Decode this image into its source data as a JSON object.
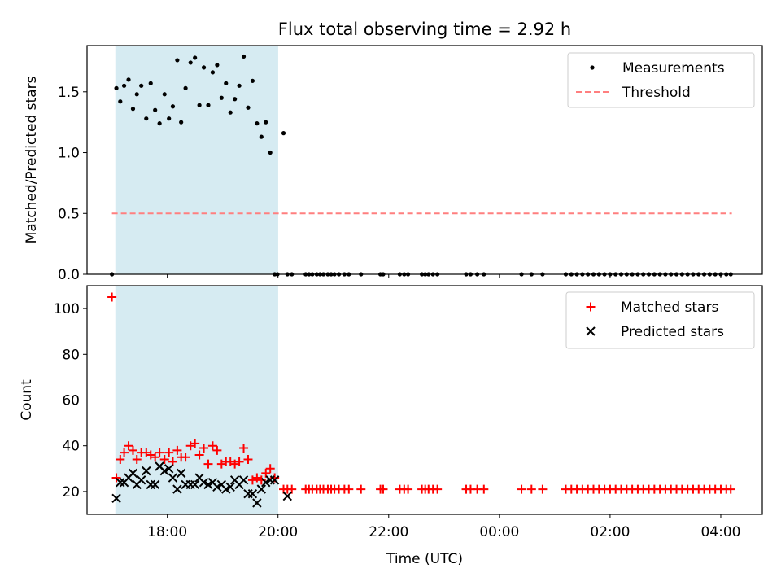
{
  "chart_data": [
    {
      "type": "scatter",
      "title": "Flux total observing time = 2.92 h",
      "xlabel": "",
      "ylabel": "Matched/Predicted stars",
      "xlim": [
        16.55,
        28.75
      ],
      "ylim": [
        0,
        1.88
      ],
      "yticks": [
        0.0,
        0.5,
        1.0,
        1.5
      ],
      "ytick_labels": [
        "0.0",
        "0.5",
        "1.0",
        "1.5"
      ],
      "xticks": [
        18,
        20,
        22,
        24,
        26,
        28
      ],
      "shaded_range": [
        17.07,
        19.99
      ],
      "legend": {
        "position": "top-right",
        "entries": [
          "Measurements",
          "Threshold"
        ]
      },
      "threshold": {
        "name": "Threshold",
        "y": 0.5,
        "x_range": [
          17.0,
          28.2
        ],
        "color": "#ff7f7f"
      },
      "series": [
        {
          "name": "Measurements",
          "marker": "dot",
          "color": "#000000",
          "x": [
            17.0,
            17.08,
            17.15,
            17.22,
            17.3,
            17.38,
            17.45,
            17.53,
            17.62,
            17.7,
            17.78,
            17.86,
            17.95,
            18.03,
            18.1,
            18.18,
            18.25,
            18.33,
            18.42,
            18.5,
            18.58,
            18.66,
            18.74,
            18.82,
            18.9,
            18.98,
            19.06,
            19.14,
            19.22,
            19.3,
            19.38,
            19.46,
            19.54,
            19.62,
            19.7,
            19.78,
            19.86,
            19.94,
            19.99,
            20.1,
            20.17,
            20.25,
            20.5,
            20.56,
            20.62,
            20.7,
            20.76,
            20.82,
            20.9,
            20.96,
            21.02,
            21.1,
            21.2,
            21.28,
            21.5,
            21.85,
            21.9,
            22.2,
            22.28,
            22.35,
            22.6,
            22.66,
            22.72,
            22.8,
            22.88,
            23.4,
            23.48,
            23.6,
            23.72,
            24.4,
            24.58,
            24.78,
            25.2,
            25.3,
            25.4,
            25.5,
            25.6,
            25.7,
            25.8,
            25.9,
            26.0,
            26.1,
            26.2,
            26.3,
            26.4,
            26.5,
            26.6,
            26.7,
            26.8,
            26.9,
            27.0,
            27.1,
            27.2,
            27.3,
            27.4,
            27.5,
            27.6,
            27.7,
            27.8,
            27.9,
            28.0,
            28.1,
            28.18
          ],
          "y": [
            0.0,
            1.53,
            1.42,
            1.55,
            1.6,
            1.36,
            1.48,
            1.55,
            1.28,
            1.57,
            1.35,
            1.24,
            1.48,
            1.28,
            1.38,
            1.76,
            1.25,
            1.53,
            1.74,
            1.78,
            1.39,
            1.7,
            1.39,
            1.66,
            1.72,
            1.45,
            1.57,
            1.33,
            1.44,
            1.55,
            1.79,
            1.37,
            1.59,
            1.24,
            1.13,
            1.25,
            1.0,
            0.0,
            0.0,
            1.16,
            0.0,
            0.0,
            0.0,
            0.0,
            0.0,
            0.0,
            0.0,
            0.0,
            0.0,
            0.0,
            0.0,
            0.0,
            0.0,
            0.0,
            0.0,
            0.0,
            0.0,
            0.0,
            0.0,
            0.0,
            0.0,
            0.0,
            0.0,
            0.0,
            0.0,
            0.0,
            0.0,
            0.0,
            0.0,
            0.0,
            0.0,
            0.0,
            0.0,
            0.0,
            0.0,
            0.0,
            0.0,
            0.0,
            0.0,
            0.0,
            0.0,
            0.0,
            0.0,
            0.0,
            0.0,
            0.0,
            0.0,
            0.0,
            0.0,
            0.0,
            0.0,
            0.0,
            0.0,
            0.0,
            0.0,
            0.0,
            0.0,
            0.0,
            0.0,
            0.0,
            0.0,
            0.0,
            0.0
          ]
        }
      ]
    },
    {
      "type": "scatter",
      "title": "",
      "xlabel": "Time (UTC)",
      "ylabel": "Count",
      "xlim": [
        16.55,
        28.75
      ],
      "ylim": [
        10,
        110
      ],
      "yticks": [
        20,
        40,
        60,
        80,
        100
      ],
      "ytick_labels": [
        "20",
        "40",
        "60",
        "80",
        "100"
      ],
      "xticks": [
        18,
        20,
        22,
        24,
        26,
        28
      ],
      "xtick_labels": [
        "18:00",
        "20:00",
        "22:00",
        "00:00",
        "02:00",
        "04:00"
      ],
      "shaded_range": [
        17.07,
        19.99
      ],
      "legend": {
        "position": "top-right",
        "entries": [
          "Matched stars",
          "Predicted stars"
        ]
      },
      "series": [
        {
          "name": "Matched stars",
          "marker": "plus",
          "color": "#ff0000",
          "x": [
            17.0,
            17.08,
            17.15,
            17.22,
            17.3,
            17.38,
            17.45,
            17.53,
            17.62,
            17.7,
            17.78,
            17.86,
            17.95,
            18.03,
            18.1,
            18.18,
            18.25,
            18.33,
            18.42,
            18.5,
            18.58,
            18.66,
            18.74,
            18.82,
            18.9,
            18.98,
            19.06,
            19.14,
            19.22,
            19.3,
            19.38,
            19.46,
            19.54,
            19.62,
            19.7,
            19.78,
            19.86,
            19.94,
            20.1,
            20.17,
            20.25,
            20.5,
            20.56,
            20.62,
            20.7,
            20.76,
            20.82,
            20.9,
            20.96,
            21.02,
            21.1,
            21.2,
            21.28,
            21.5,
            21.85,
            21.9,
            22.2,
            22.28,
            22.35,
            22.6,
            22.66,
            22.72,
            22.8,
            22.88,
            23.4,
            23.48,
            23.6,
            23.72,
            24.4,
            24.58,
            24.78,
            25.2,
            25.3,
            25.4,
            25.5,
            25.6,
            25.7,
            25.8,
            25.9,
            26.0,
            26.1,
            26.2,
            26.3,
            26.4,
            26.5,
            26.6,
            26.7,
            26.8,
            26.9,
            27.0,
            27.1,
            27.2,
            27.3,
            27.4,
            27.5,
            27.6,
            27.7,
            27.8,
            27.9,
            28.0,
            28.1,
            28.18
          ],
          "y": [
            105,
            26,
            34,
            37,
            40,
            38,
            34,
            37,
            37,
            36,
            35,
            37,
            34,
            37,
            33,
            38,
            35,
            35,
            40,
            41,
            36,
            39,
            32,
            40,
            38,
            32,
            33,
            33,
            32,
            33,
            39,
            34,
            25,
            26,
            25,
            28,
            30,
            26,
            21,
            21,
            21,
            21,
            21,
            21,
            21,
            21,
            21,
            21,
            21,
            21,
            21,
            21,
            21,
            21,
            21,
            21,
            21,
            21,
            21,
            21,
            21,
            21,
            21,
            21,
            21,
            21,
            21,
            21,
            21,
            21,
            21,
            21,
            21,
            21,
            21,
            21,
            21,
            21,
            21,
            21,
            21,
            21,
            21,
            21,
            21,
            21,
            21,
            21,
            21,
            21,
            21,
            21,
            21,
            21,
            21,
            21,
            21,
            21,
            21,
            21,
            21,
            21
          ]
        },
        {
          "name": "Predicted stars",
          "marker": "x",
          "color": "#000000",
          "x": [
            17.08,
            17.15,
            17.22,
            17.3,
            17.38,
            17.45,
            17.53,
            17.62,
            17.7,
            17.78,
            17.86,
            17.95,
            18.03,
            18.1,
            18.18,
            18.25,
            18.33,
            18.42,
            18.5,
            18.58,
            18.66,
            18.74,
            18.82,
            18.9,
            18.98,
            19.06,
            19.14,
            19.22,
            19.3,
            19.38,
            19.46,
            19.54,
            19.62,
            19.7,
            19.78,
            19.86,
            19.94,
            20.17
          ],
          "y": [
            17,
            24,
            24,
            26,
            28,
            23,
            25,
            29,
            23,
            23,
            31,
            29,
            30,
            26,
            21,
            28,
            23,
            23,
            23,
            26,
            24,
            23,
            24,
            22,
            23,
            21,
            22,
            25,
            23,
            25,
            19,
            19,
            15,
            21,
            24,
            25,
            25,
            18
          ]
        }
      ]
    }
  ]
}
